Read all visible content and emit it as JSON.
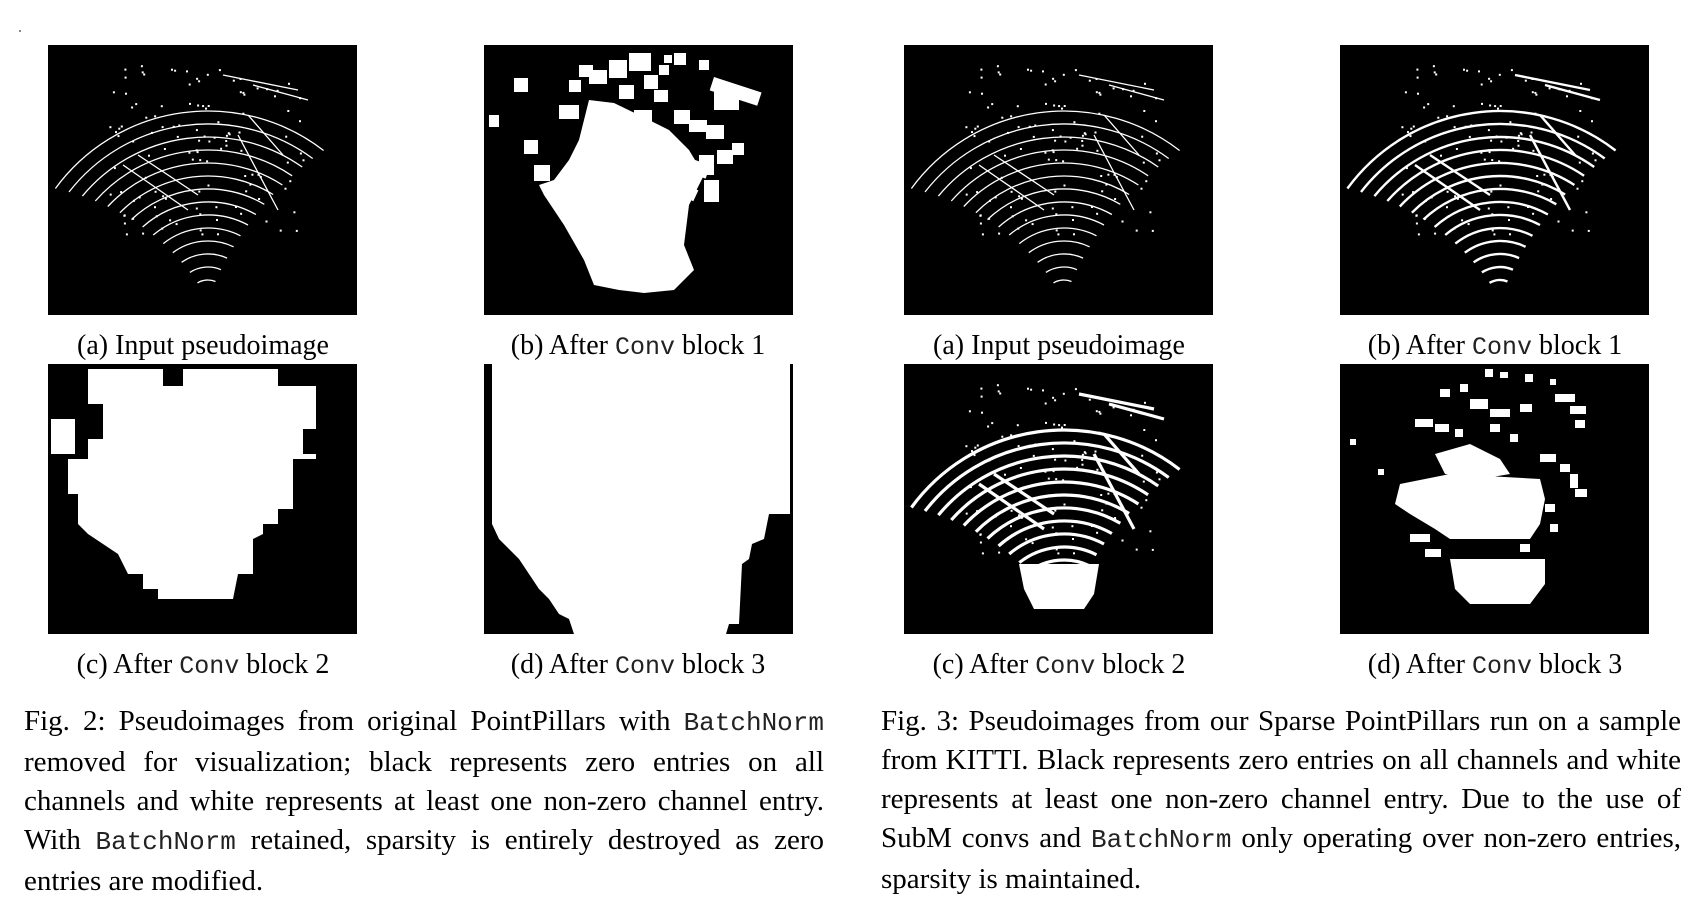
{
  "figure_2": {
    "panels": [
      {
        "label": "(a) Input pseudoimage",
        "prefix": "",
        "code": "",
        "suffix": ""
      },
      {
        "label": "",
        "prefix": "(b) After ",
        "code": "Conv",
        "suffix": " block 1"
      },
      {
        "label": "",
        "prefix": "(c) After ",
        "code": "Conv",
        "suffix": " block 2"
      },
      {
        "label": "",
        "prefix": "(d) After ",
        "code": "Conv",
        "suffix": " block 3"
      }
    ],
    "caption": {
      "part1": "Fig. 2: Pseudoimages from original PointPillars with ",
      "code1": "BatchNorm",
      "part2": " removed for visualization; black represents zero entries on all channels and white represents at least one non-zero channel entry. With ",
      "code2": "BatchNorm",
      "part3": " retained, sparsity is entirely destroyed as zero entries are modified."
    }
  },
  "figure_3": {
    "panels": [
      {
        "label": "(a) Input pseudoimage",
        "prefix": "",
        "code": "",
        "suffix": ""
      },
      {
        "label": "",
        "prefix": "(b) After ",
        "code": "Conv",
        "suffix": " block 1"
      },
      {
        "label": "",
        "prefix": "(c) After ",
        "code": "Conv",
        "suffix": " block 2"
      },
      {
        "label": "",
        "prefix": "(d) After ",
        "code": "Conv",
        "suffix": " block 3"
      }
    ],
    "caption": {
      "part1": "Fig. 3: Pseudoimages from our Sparse PointPillars run on a sample from KITTI. Black represents zero entries on all channels and white represents at least one non-zero channel entry. Due to the use of SubM convs and ",
      "code1": "BatchNorm",
      "part2": " only operating over non-zero entries, sparsity is maintained."
    }
  }
}
